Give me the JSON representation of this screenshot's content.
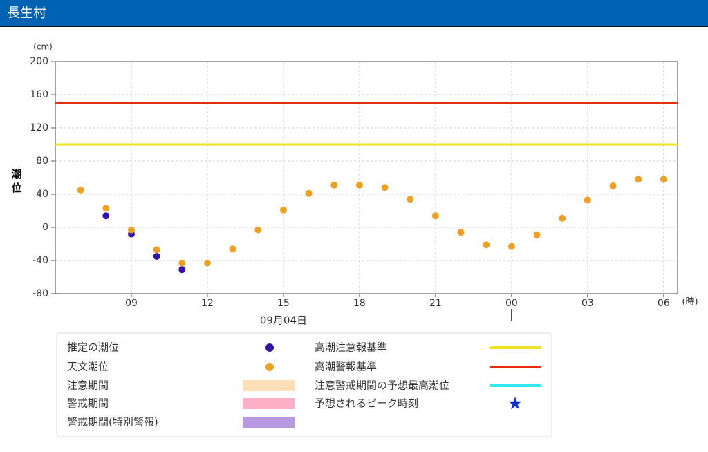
{
  "header": {
    "title": "長生村"
  },
  "chart_data": {
    "type": "scatter",
    "y_label": "潮位",
    "y_unit": "(cm)",
    "x_unit": "(時)",
    "date_label": "09月04日",
    "day_boundary": 24,
    "xlim": [
      6,
      30.55
    ],
    "xticks": [
      {
        "value": 9,
        "label": "09"
      },
      12,
      15,
      18,
      21,
      {
        "value": 24,
        "label": "00"
      },
      {
        "value": 27,
        "label": "03"
      },
      {
        "value": 30,
        "label": "06"
      }
    ],
    "ylim": [
      -80,
      200
    ],
    "yticks": [
      200,
      160,
      120,
      80,
      40,
      0,
      -40,
      -80
    ],
    "grid": true,
    "series": [
      {
        "name": "推定の潮位",
        "color": "#3311aa",
        "x": [
          8,
          9,
          10,
          11
        ],
        "values": [
          14,
          -8,
          -35,
          -51
        ]
      },
      {
        "name": "天文潮位",
        "color": "#f0a020",
        "x": [
          7,
          8,
          9,
          10,
          11,
          12,
          13,
          14,
          15,
          16,
          17,
          18,
          19,
          20,
          21,
          22,
          23,
          24,
          25,
          26,
          27,
          28,
          29,
          30
        ],
        "values": [
          45,
          23,
          -3,
          -27,
          -43,
          -43,
          -26,
          -3,
          21,
          41,
          51,
          51,
          48,
          34,
          14,
          -6,
          -21,
          -23,
          -9,
          11,
          33,
          50,
          58,
          58
        ]
      }
    ],
    "reference_lines": [
      {
        "name": "高潮注意報基準",
        "value": 100,
        "color": "#f0e020"
      },
      {
        "name": "高潮警報基準",
        "value": 150,
        "color": "#e03010"
      }
    ],
    "legend_extras": [
      {
        "name": "注意期間",
        "color": "#fde0b8"
      },
      {
        "name": "警戒期間",
        "color": "#fbb0c8"
      },
      {
        "name": "警戒期間(特別警報)",
        "color": "#b898e0"
      },
      {
        "name": "注意警戒期間の予想最高潮位",
        "color": "#30e8f0"
      },
      {
        "name": "予想されるピーク時刻",
        "color": "#1030d0"
      }
    ]
  }
}
